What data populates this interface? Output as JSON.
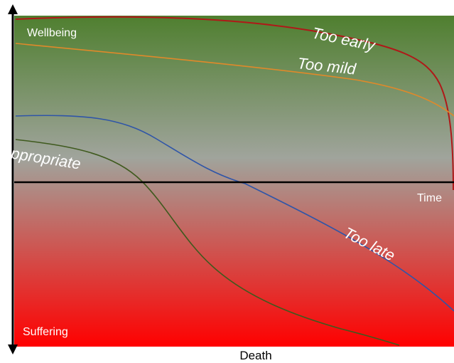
{
  "diagram": {
    "labels": {
      "wellbeing": "Wellbeing",
      "suffering": "Suffering",
      "time": "Time",
      "death": "Death"
    },
    "curves": [
      {
        "id": "too-early",
        "label": "Too early",
        "color": "#b01818"
      },
      {
        "id": "too-mild",
        "label": "Too mild",
        "color": "#e0892a"
      },
      {
        "id": "too-late",
        "label": "Too late",
        "color": "#2f55a8"
      },
      {
        "id": "appropriate",
        "label": "Appropriate",
        "color": "#3f5a1e"
      }
    ],
    "colors": {
      "top": "#4f7f2f",
      "middle": "#a0a49c",
      "bottom": "#ff0000",
      "axis": "#000000",
      "label_text": "#ffffff",
      "caption_text": "#000000"
    }
  }
}
